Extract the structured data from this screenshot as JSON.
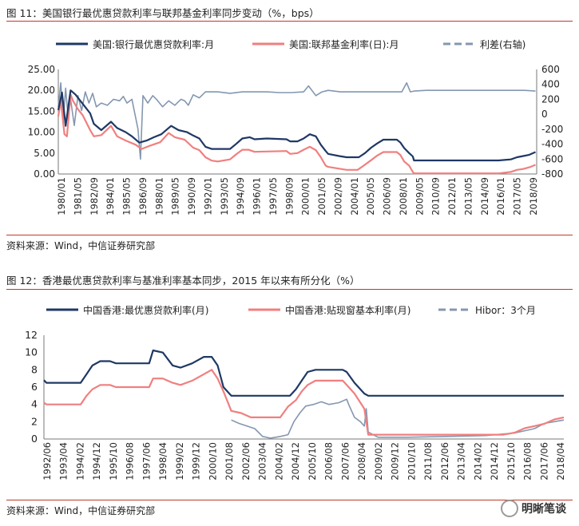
{
  "figure1": {
    "title": "图 11：美国银行最优惠贷款利率与联邦基金利率同步变动（%，bps）",
    "source": "资料来源：Wind，中信证券研究部",
    "chart_data": {
      "type": "line",
      "title": "",
      "legend_placement": "top",
      "grid": false,
      "x_tick_labels": [
        "1980/01",
        "1981/05",
        "1982/09",
        "1984/01",
        "1985/05",
        "1986/09",
        "1988/01",
        "1989/05",
        "1990/09",
        "1992/01",
        "1993/05",
        "1994/09",
        "1996/01",
        "1997/05",
        "1998/09",
        "2000/01",
        "2001/05",
        "2002/09",
        "2004/01",
        "2005/05",
        "2006/09",
        "2008/01",
        "2009/05",
        "2010/09",
        "2012/01",
        "2013/05",
        "2014/09",
        "2016/01",
        "2017/05",
        "2018/09"
      ],
      "x_range": [
        1980.0,
        2019.0
      ],
      "y_left_ticks": [
        "0.00",
        "5.00",
        "10.00",
        "15.00",
        "20.00",
        "25.00"
      ],
      "y_left_range": [
        0,
        25
      ],
      "y_right_ticks": [
        "-800",
        "-600",
        "-400",
        "-200",
        "0",
        "200",
        "400",
        "600"
      ],
      "y_right_range": [
        -800,
        600
      ],
      "series": [
        {
          "name": "美国:银行最优惠贷款利率:月",
          "axis": "left",
          "color": "#1f3864",
          "dash": false,
          "x": [
            1980.0,
            1980.3,
            1980.6,
            1981.0,
            1981.4,
            1981.8,
            1982.2,
            1982.6,
            1982.9,
            1983.5,
            1984.3,
            1984.8,
            1985.5,
            1986.0,
            1986.6,
            1987.2,
            1987.8,
            1988.4,
            1989.2,
            1989.8,
            1990.5,
            1991.0,
            1991.5,
            1992.0,
            1992.5,
            1994.0,
            1994.5,
            1995.0,
            1995.6,
            1996.0,
            1997.0,
            1998.6,
            1998.9,
            1999.5,
            2000.0,
            2000.5,
            2001.0,
            2001.4,
            2001.8,
            2002.0,
            2002.9,
            2003.5,
            2004.5,
            2005.0,
            2005.5,
            2006.0,
            2006.5,
            2007.6,
            2007.9,
            2008.2,
            2008.6,
            2008.9,
            2009.0,
            2015.9,
            2016.9,
            2017.4,
            2017.9,
            2018.4,
            2018.9
          ],
          "values": [
            15.3,
            19.5,
            11.5,
            20.0,
            19.0,
            17.5,
            16.0,
            14.5,
            12.0,
            10.5,
            12.5,
            11.0,
            10.0,
            9.0,
            7.5,
            8.0,
            8.8,
            9.5,
            11.5,
            10.5,
            10.0,
            9.2,
            8.5,
            6.5,
            6.0,
            6.0,
            7.2,
            8.5,
            8.8,
            8.3,
            8.5,
            8.3,
            7.8,
            7.8,
            8.5,
            9.5,
            9.0,
            7.0,
            5.5,
            4.8,
            4.3,
            4.0,
            4.0,
            5.0,
            6.3,
            7.3,
            8.2,
            8.2,
            7.5,
            6.2,
            5.0,
            4.2,
            3.25,
            3.25,
            3.5,
            4.0,
            4.3,
            4.6,
            5.25
          ]
        },
        {
          "name": "美国:联邦基金利率(日):月",
          "axis": "left",
          "color": "#f07f7f",
          "dash": false,
          "x": [
            1980.0,
            1980.2,
            1980.5,
            1980.7,
            1981.0,
            1981.2,
            1981.6,
            1982.0,
            1982.6,
            1982.9,
            1983.5,
            1984.3,
            1984.8,
            1985.5,
            1986.3,
            1986.8,
            1987.5,
            1988.3,
            1989.0,
            1989.5,
            1990.3,
            1991.0,
            1991.5,
            1992.0,
            1992.5,
            1993.0,
            1994.0,
            1994.5,
            1995.0,
            1995.5,
            1996.0,
            1998.6,
            1998.9,
            1999.5,
            2000.0,
            2000.5,
            2001.0,
            2001.4,
            2001.8,
            2002.0,
            2003.5,
            2004.4,
            2004.9,
            2005.5,
            2006.0,
            2006.5,
            2007.6,
            2007.9,
            2008.2,
            2008.6,
            2008.9,
            2009.0,
            2015.9,
            2016.9,
            2017.4,
            2017.9,
            2018.4,
            2018.9
          ],
          "values": [
            13.8,
            17.6,
            9.5,
            9.0,
            19.0,
            17.5,
            15.5,
            14.0,
            10.5,
            9.0,
            9.3,
            11.5,
            9.0,
            8.0,
            7.0,
            6.0,
            6.8,
            7.6,
            9.8,
            8.8,
            8.2,
            6.3,
            5.7,
            4.0,
            3.2,
            3.0,
            3.5,
            4.7,
            5.8,
            5.8,
            5.3,
            5.5,
            4.8,
            5.0,
            5.8,
            6.5,
            5.7,
            4.0,
            2.0,
            1.7,
            1.0,
            1.0,
            2.0,
            3.3,
            4.4,
            5.25,
            5.25,
            4.5,
            3.0,
            2.0,
            0.5,
            0.15,
            0.15,
            0.5,
            1.0,
            1.2,
            1.6,
            2.2
          ]
        },
        {
          "name": "利差(右轴)",
          "axis": "right",
          "color": "#8497b0",
          "dash": true,
          "x": [
            1980.0,
            1980.2,
            1980.4,
            1980.6,
            1980.8,
            1981.0,
            1981.3,
            1981.6,
            1981.9,
            1982.2,
            1982.5,
            1982.8,
            1983.1,
            1983.5,
            1984.0,
            1984.5,
            1985.0,
            1985.3,
            1985.6,
            1986.0,
            1986.5,
            1986.7,
            1986.9,
            1987.3,
            1987.7,
            1988.0,
            1988.5,
            1989.0,
            1989.5,
            1990.0,
            1990.3,
            1990.6,
            1991.0,
            1991.5,
            1992.0,
            1993.0,
            1994.0,
            1995.0,
            1996.0,
            1997.0,
            1998.0,
            1999.0,
            2000.0,
            2000.4,
            2001.0,
            2001.5,
            2002.0,
            2003.0,
            2004.0,
            2005.0,
            2006.0,
            2007.0,
            2008.0,
            2008.4,
            2008.7,
            2009.0,
            2010.0,
            2012.0,
            2014.0,
            2016.0,
            2018.0,
            2018.9
          ],
          "values": [
            100,
            420,
            -100,
            350,
            -50,
            200,
            -150,
            250,
            50,
            300,
            150,
            280,
            100,
            150,
            120,
            200,
            180,
            240,
            150,
            200,
            -200,
            -600,
            250,
            150,
            250,
            200,
            100,
            180,
            120,
            200,
            180,
            120,
            260,
            220,
            300,
            300,
            280,
            300,
            300,
            300,
            290,
            290,
            300,
            380,
            250,
            300,
            320,
            300,
            300,
            300,
            300,
            300,
            300,
            420,
            300,
            310,
            320,
            320,
            320,
            320,
            320,
            310
          ]
        }
      ]
    }
  },
  "figure2": {
    "title": "图 12：香港最优惠贷款利率与基准利率基本同步，2015 年以来有所分化（%）",
    "source": "资料来源：Wind，中信证券研究部",
    "watermark": "明晰笔谈",
    "chart_data": {
      "type": "line",
      "title": "",
      "legend_placement": "top",
      "grid": false,
      "x_tick_labels": [
        "1992/06",
        "1993/04",
        "1994/02",
        "1994/12",
        "1995/10",
        "1996/08",
        "1997/06",
        "1998/04",
        "1999/02",
        "1999/12",
        "2000/10",
        "2001/08",
        "2002/06",
        "2003/04",
        "2004/02",
        "2004/12",
        "2005/10",
        "2006/08",
        "2007/06",
        "2008/04",
        "2009/02",
        "2009/12",
        "2010/10",
        "2011/08",
        "2012/06",
        "2013/04",
        "2014/02",
        "2014/12",
        "2015/10",
        "2016/08",
        "2017/06",
        "2018/04"
      ],
      "x_range": [
        1992.42,
        2019.0
      ],
      "y_ticks": [
        "0",
        "2",
        "4",
        "6",
        "8",
        "10",
        "12"
      ],
      "y_range": [
        0,
        12
      ],
      "series": [
        {
          "name": "中国香港:最优惠贷款利率(月)",
          "color": "#1f3864",
          "dash": false,
          "x": [
            1992.42,
            1992.55,
            1994.3,
            1994.6,
            1994.9,
            1995.3,
            1995.8,
            1996.1,
            1997.8,
            1998.0,
            1998.5,
            1999.0,
            1999.4,
            2000.0,
            2000.6,
            2001.0,
            2001.3,
            2001.6,
            2002.0,
            2005.0,
            2005.3,
            2005.6,
            2005.9,
            2006.3,
            2007.7,
            2007.9,
            2008.3,
            2008.8,
            2009.0,
            2019.0
          ],
          "values": [
            6.8,
            6.5,
            6.5,
            7.5,
            8.5,
            9.0,
            9.0,
            8.75,
            8.75,
            10.25,
            10.0,
            8.5,
            8.25,
            8.75,
            9.5,
            9.5,
            8.5,
            6.0,
            5.0,
            5.0,
            5.75,
            6.75,
            7.75,
            8.0,
            8.0,
            7.75,
            6.5,
            5.25,
            5.0,
            5.0
          ]
        },
        {
          "name": "中国香港:贴现窗基本利率(月)",
          "color": "#f07f7f",
          "dash": false,
          "x": [
            1992.42,
            1992.55,
            1994.3,
            1994.6,
            1994.9,
            1995.3,
            1995.8,
            1996.1,
            1997.8,
            1998.0,
            1998.5,
            1999.0,
            1999.4,
            2000.0,
            2000.6,
            2001.0,
            2001.3,
            2001.6,
            2002.0,
            2002.5,
            2003.0,
            2004.5,
            2004.9,
            2005.3,
            2005.6,
            2005.9,
            2006.3,
            2007.7,
            2007.9,
            2008.3,
            2008.8,
            2009.0,
            2015.9,
            2016.5,
            2017.0,
            2017.5,
            2018.0,
            2018.5,
            2019.0
          ],
          "values": [
            4.2,
            4.0,
            4.0,
            5.0,
            5.75,
            6.25,
            6.25,
            6.0,
            6.0,
            7.0,
            7.0,
            6.5,
            6.25,
            6.75,
            7.5,
            8.0,
            7.0,
            5.5,
            3.25,
            3.0,
            2.5,
            2.5,
            3.75,
            4.5,
            5.5,
            6.25,
            6.75,
            6.75,
            6.25,
            5.25,
            3.5,
            0.5,
            0.5,
            0.75,
            1.25,
            1.5,
            1.75,
            2.25,
            2.5
          ]
        },
        {
          "name": "Hibor：3个月",
          "color": "#8497b0",
          "dash": true,
          "x": [
            2002.0,
            2002.4,
            2002.8,
            2003.2,
            2003.6,
            2004.0,
            2004.5,
            2004.9,
            2005.2,
            2005.5,
            2005.8,
            2006.2,
            2006.6,
            2007.0,
            2007.5,
            2007.9,
            2008.0,
            2008.3,
            2008.6,
            2008.8,
            2008.9,
            2009.0,
            2009.5,
            2011.0,
            2013.0,
            2015.0,
            2016.5,
            2017.5,
            2018.0,
            2018.5,
            2019.0
          ],
          "values": [
            2.2,
            1.8,
            1.5,
            1.2,
            0.3,
            0.1,
            0.3,
            0.5,
            2.0,
            3.0,
            3.8,
            4.0,
            4.3,
            4.0,
            4.2,
            4.6,
            4.0,
            2.5,
            2.0,
            1.5,
            3.5,
            0.8,
            0.2,
            0.2,
            0.3,
            0.4,
            0.7,
            1.2,
            1.8,
            2.0,
            2.2
          ]
        }
      ]
    }
  }
}
